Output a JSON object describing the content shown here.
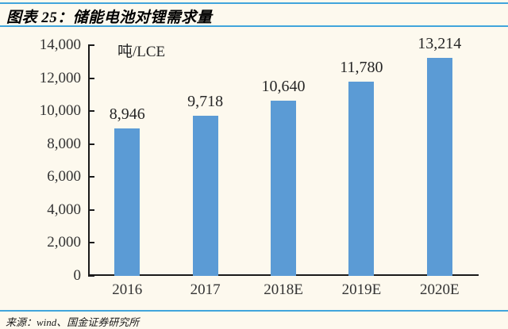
{
  "header": {
    "title": "图表 25：储能电池对锂需求量"
  },
  "footer": {
    "source": "来源：wind、国金证券研究所"
  },
  "colors": {
    "background": "#FDF9EE",
    "rule_blue": "#41A5DC",
    "bar_blue": "#5B9BD5",
    "axis": "#1A1A1A",
    "text": "#262626"
  },
  "chart_data": {
    "type": "bar",
    "title": "储能电池对锂需求量",
    "unit_label": "吨/LCE",
    "categories": [
      "2016",
      "2017",
      "2018E",
      "2019E",
      "2020E"
    ],
    "values": [
      8946,
      9718,
      10640,
      11780,
      13214
    ],
    "value_labels": [
      "8,946",
      "9,718",
      "10,640",
      "11,780",
      "13,214"
    ],
    "y_tick_values": [
      0,
      2000,
      4000,
      6000,
      8000,
      10000,
      12000,
      14000
    ],
    "y_tick_labels": [
      "0",
      "2,000",
      "4,000",
      "6,000",
      "8,000",
      "10,000",
      "12,000",
      "14,000"
    ],
    "ylim": [
      0,
      14000
    ],
    "xlabel": "",
    "ylabel": "吨/LCE",
    "grid": false,
    "legend": "none"
  }
}
